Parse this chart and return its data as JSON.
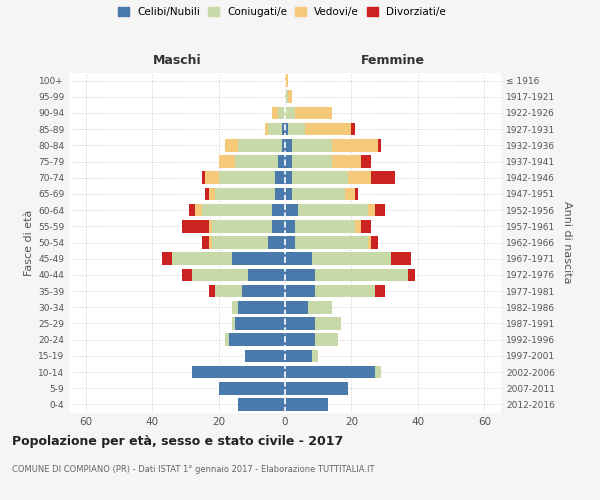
{
  "age_groups": [
    "0-4",
    "5-9",
    "10-14",
    "15-19",
    "20-24",
    "25-29",
    "30-34",
    "35-39",
    "40-44",
    "45-49",
    "50-54",
    "55-59",
    "60-64",
    "65-69",
    "70-74",
    "75-79",
    "80-84",
    "85-89",
    "90-94",
    "95-99",
    "100+"
  ],
  "birth_years": [
    "2012-2016",
    "2007-2011",
    "2002-2006",
    "1997-2001",
    "1992-1996",
    "1987-1991",
    "1982-1986",
    "1977-1981",
    "1972-1976",
    "1967-1971",
    "1962-1966",
    "1957-1961",
    "1952-1956",
    "1947-1951",
    "1942-1946",
    "1937-1941",
    "1932-1936",
    "1927-1931",
    "1922-1926",
    "1917-1921",
    "≤ 1916"
  ],
  "maschi": {
    "celibi": [
      14,
      20,
      28,
      12,
      17,
      15,
      14,
      13,
      11,
      16,
      5,
      4,
      4,
      3,
      3,
      2,
      1,
      1,
      0,
      0,
      0
    ],
    "coniugati": [
      0,
      0,
      0,
      0,
      1,
      1,
      2,
      8,
      17,
      18,
      17,
      18,
      21,
      18,
      17,
      13,
      13,
      4,
      2,
      0,
      0
    ],
    "vedovi": [
      0,
      0,
      0,
      0,
      0,
      0,
      0,
      0,
      0,
      0,
      1,
      1,
      2,
      2,
      4,
      5,
      4,
      1,
      2,
      0,
      0
    ],
    "divorziati": [
      0,
      0,
      0,
      0,
      0,
      0,
      0,
      2,
      3,
      3,
      2,
      8,
      2,
      1,
      1,
      0,
      0,
      0,
      0,
      0,
      0
    ]
  },
  "femmine": {
    "nubili": [
      13,
      19,
      27,
      8,
      9,
      9,
      7,
      9,
      9,
      8,
      3,
      3,
      4,
      2,
      2,
      2,
      2,
      1,
      0,
      0,
      0
    ],
    "coniugate": [
      0,
      0,
      2,
      2,
      7,
      8,
      7,
      18,
      28,
      24,
      22,
      18,
      21,
      16,
      17,
      12,
      12,
      5,
      3,
      1,
      0
    ],
    "vedove": [
      0,
      0,
      0,
      0,
      0,
      0,
      0,
      0,
      0,
      0,
      1,
      2,
      2,
      3,
      7,
      9,
      14,
      14,
      11,
      1,
      1
    ],
    "divorziate": [
      0,
      0,
      0,
      0,
      0,
      0,
      0,
      3,
      2,
      6,
      2,
      3,
      3,
      1,
      7,
      3,
      1,
      1,
      0,
      0,
      0
    ]
  },
  "colors": {
    "celibi_nubili": "#4a7aac",
    "coniugati": "#c8d9a8",
    "vedovi": "#f5c97a",
    "divorziati": "#cc2222"
  },
  "title": "Popolazione per età, sesso e stato civile - 2017",
  "subtitle": "COMUNE DI COMPIANO (PR) - Dati ISTAT 1° gennaio 2017 - Elaborazione TUTTITALIA.IT",
  "xlabel_left": "Maschi",
  "xlabel_right": "Femmine",
  "ylabel_left": "Fasce di età",
  "ylabel_right": "Anni di nascita",
  "xlim": 65,
  "bg_color": "#f5f5f5",
  "plot_bg": "#ffffff",
  "grid_color": "#cccccc"
}
